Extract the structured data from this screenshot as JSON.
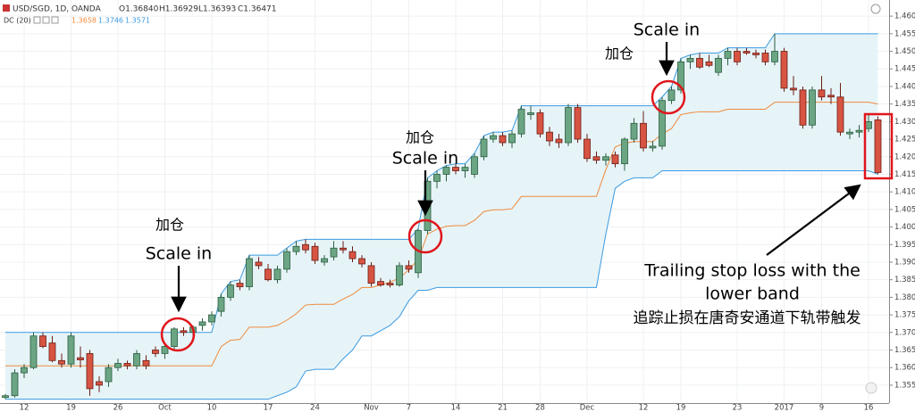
{
  "chart_data": {
    "type": "candlestick",
    "title": "USD/SGD, 1D, OANDA",
    "readout": [
      "O1.36840",
      "H1.36929",
      "L1.36393",
      "C1.36471"
    ],
    "indicator": {
      "name": "DC (20)",
      "readout": [
        {
          "text": "1.3658",
          "color": "#f0883a"
        },
        {
          "text": "1.3746",
          "color": "#3b9ae1"
        },
        {
          "text": "1.3571",
          "color": "#3b9ae1"
        }
      ]
    },
    "up_color": "#6ba583",
    "down_color": "#d75442",
    "categories": [
      null,
      null,
      "12",
      null,
      null,
      null,
      null,
      "19",
      null,
      null,
      null,
      null,
      "26",
      null,
      null,
      null,
      null,
      "Oct",
      null,
      null,
      null,
      null,
      "10",
      null,
      null,
      null,
      null,
      null,
      "17",
      null,
      null,
      null,
      null,
      "24",
      null,
      null,
      null,
      null,
      null,
      "Nov",
      null,
      null,
      null,
      "7",
      null,
      null,
      null,
      null,
      "14",
      null,
      null,
      null,
      null,
      "21",
      null,
      null,
      null,
      "28",
      null,
      null,
      null,
      null,
      "Dec",
      null,
      null,
      null,
      null,
      null,
      "12",
      null,
      null,
      null,
      "19",
      null,
      null,
      null,
      null,
      null,
      "23",
      null,
      null,
      null,
      null,
      "2017",
      null,
      null,
      null,
      "9",
      null,
      null,
      null,
      null,
      "16",
      null
    ],
    "open": [
      1.3515,
      1.352,
      1.3585,
      1.36,
      1.369,
      1.367,
      1.362,
      1.361,
      1.3628,
      1.364,
      1.356,
      1.356,
      1.36,
      1.3612,
      1.3605,
      1.362,
      1.365,
      1.364,
      1.366,
      1.3705,
      1.37,
      1.372,
      1.373,
      1.376,
      1.38,
      1.384,
      1.383,
      1.39,
      1.388,
      1.385,
      1.388,
      1.393,
      1.395,
      1.3945,
      1.39,
      1.3915,
      1.394,
      1.393,
      1.391,
      1.389,
      1.3845,
      1.384,
      1.3835,
      1.389,
      1.387,
      1.399,
      1.413,
      1.415,
      1.417,
      1.416,
      1.415,
      1.42,
      1.425,
      1.426,
      1.424,
      1.4265,
      1.432,
      1.4325,
      1.427,
      1.425,
      1.424,
      1.434,
      1.425,
      1.42,
      1.419,
      1.4205,
      1.418,
      1.425,
      1.4295,
      1.4225,
      1.423,
      1.436,
      1.439,
      1.447,
      1.448,
      1.447,
      1.444,
      1.448,
      1.45,
      1.45,
      1.4495,
      1.4495,
      1.447,
      1.45,
      1.4395,
      1.439,
      1.429,
      1.439,
      1.4375,
      1.437,
      1.4265,
      1.427,
      1.428,
      1.4305
    ],
    "high": [
      1.3525,
      1.3595,
      1.361,
      1.37,
      1.37,
      1.369,
      1.364,
      1.37,
      1.366,
      1.365,
      1.3575,
      1.361,
      1.3625,
      1.362,
      1.365,
      1.3635,
      1.366,
      1.3668,
      1.3715,
      1.3715,
      1.372,
      1.374,
      1.376,
      1.381,
      1.3845,
      1.385,
      1.392,
      1.3915,
      1.3895,
      1.389,
      1.394,
      1.396,
      1.3965,
      1.3955,
      1.392,
      1.396,
      1.396,
      1.3945,
      1.392,
      1.39,
      1.3855,
      1.385,
      1.39,
      1.3905,
      1.3995,
      1.414,
      1.416,
      1.4175,
      1.418,
      1.418,
      1.421,
      1.426,
      1.427,
      1.427,
      1.4275,
      1.4345,
      1.4345,
      1.4335,
      1.4285,
      1.4265,
      1.435,
      1.435,
      1.4265,
      1.4215,
      1.421,
      1.4215,
      1.4255,
      1.431,
      1.433,
      1.4245,
      1.437,
      1.44,
      1.448,
      1.449,
      1.4495,
      1.449,
      1.449,
      1.451,
      1.451,
      1.451,
      1.4505,
      1.4505,
      1.455,
      1.451,
      1.443,
      1.44,
      1.44,
      1.443,
      1.4395,
      1.441,
      1.428,
      1.429,
      1.432,
      1.4315
    ],
    "low": [
      1.351,
      1.3515,
      1.357,
      1.3595,
      1.3655,
      1.3615,
      1.36,
      1.36,
      1.36,
      1.352,
      1.353,
      1.3545,
      1.359,
      1.3595,
      1.3595,
      1.3595,
      1.363,
      1.3625,
      1.365,
      1.369,
      1.369,
      1.3705,
      1.372,
      1.3745,
      1.379,
      1.382,
      1.382,
      1.388,
      1.3845,
      1.384,
      1.387,
      1.392,
      1.3925,
      1.3895,
      1.389,
      1.3905,
      1.3925,
      1.39,
      1.3885,
      1.383,
      1.383,
      1.3828,
      1.383,
      1.387,
      1.3855,
      1.398,
      1.411,
      1.413,
      1.415,
      1.414,
      1.414,
      1.419,
      1.424,
      1.423,
      1.4225,
      1.4255,
      1.4305,
      1.4255,
      1.423,
      1.4225,
      1.423,
      1.424,
      1.4185,
      1.418,
      1.4175,
      1.417,
      1.416,
      1.424,
      1.4215,
      1.4215,
      1.422,
      1.435,
      1.438,
      1.445,
      1.445,
      1.4455,
      1.443,
      1.446,
      1.446,
      1.449,
      1.448,
      1.446,
      1.446,
      1.4385,
      1.4375,
      1.428,
      1.428,
      1.436,
      1.435,
      1.426,
      1.425,
      1.4255,
      1.427,
      1.415
    ],
    "close": [
      1.352,
      1.3585,
      1.36,
      1.369,
      1.366,
      1.362,
      1.361,
      1.369,
      1.3622,
      1.354,
      1.355,
      1.36,
      1.3612,
      1.3605,
      1.364,
      1.3605,
      1.364,
      1.366,
      1.371,
      1.37,
      1.3715,
      1.373,
      1.375,
      1.38,
      1.3835,
      1.383,
      1.391,
      1.389,
      1.385,
      1.388,
      1.393,
      1.3945,
      1.3935,
      1.3905,
      1.391,
      1.394,
      1.3935,
      1.391,
      1.3895,
      1.384,
      1.3835,
      1.3835,
      1.389,
      1.388,
      1.399,
      1.413,
      1.415,
      1.417,
      1.416,
      1.417,
      1.42,
      1.425,
      1.426,
      1.424,
      1.4265,
      1.4335,
      1.4325,
      1.4265,
      1.4245,
      1.424,
      1.434,
      1.425,
      1.4195,
      1.419,
      1.42,
      1.418,
      1.425,
      1.4295,
      1.4225,
      1.423,
      1.436,
      1.439,
      1.447,
      1.448,
      1.4455,
      1.446,
      1.448,
      1.45,
      1.447,
      1.4495,
      1.449,
      1.447,
      1.45,
      1.4395,
      1.439,
      1.429,
      1.439,
      1.437,
      1.437,
      1.427,
      1.427,
      1.4275,
      1.43,
      1.4155
    ],
    "bands": [
      {
        "color": "#3b9ae1",
        "values": [
          1.37,
          1.37,
          1.37,
          1.37,
          1.37,
          1.37,
          1.37,
          1.37,
          1.37,
          1.37,
          1.37,
          1.37,
          1.37,
          1.37,
          1.37,
          1.37,
          1.37,
          1.37,
          1.37,
          1.37,
          1.37,
          1.37,
          1.37,
          1.381,
          1.3845,
          1.385,
          1.392,
          1.392,
          1.392,
          1.392,
          1.394,
          1.396,
          1.3965,
          1.3965,
          1.3965,
          1.3965,
          1.3965,
          1.3965,
          1.3965,
          1.3965,
          1.3965,
          1.3965,
          1.3965,
          1.3965,
          1.3995,
          1.414,
          1.416,
          1.4175,
          1.418,
          1.418,
          1.421,
          1.426,
          1.427,
          1.427,
          1.4275,
          1.4345,
          1.4345,
          1.4345,
          1.4345,
          1.4345,
          1.4345,
          1.4345,
          1.4345,
          1.4345,
          1.4345,
          1.4345,
          1.4345,
          1.4345,
          1.4345,
          1.4345,
          1.437,
          1.44,
          1.448,
          1.449,
          1.4495,
          1.4495,
          1.4495,
          1.451,
          1.451,
          1.451,
          1.451,
          1.451,
          1.455,
          1.455,
          1.455,
          1.455,
          1.455,
          1.455,
          1.455,
          1.455,
          1.455,
          1.455,
          1.455,
          1.455
        ]
      },
      {
        "color": "#3b9ae1",
        "values": [
          1.351,
          1.351,
          1.351,
          1.351,
          1.351,
          1.351,
          1.351,
          1.351,
          1.351,
          1.351,
          1.351,
          1.351,
          1.351,
          1.351,
          1.351,
          1.351,
          1.351,
          1.351,
          1.351,
          1.351,
          1.351,
          1.351,
          1.351,
          1.351,
          1.351,
          1.351,
          1.351,
          1.351,
          1.351,
          1.352,
          1.353,
          1.3545,
          1.359,
          1.3595,
          1.3595,
          1.3595,
          1.3625,
          1.365,
          1.369,
          1.369,
          1.3705,
          1.372,
          1.3745,
          1.379,
          1.382,
          1.382,
          1.3828,
          1.3828,
          1.3828,
          1.3828,
          1.3828,
          1.3828,
          1.3828,
          1.3828,
          1.3828,
          1.3828,
          1.3828,
          1.3828,
          1.3828,
          1.3828,
          1.3828,
          1.3828,
          1.3828,
          1.3828,
          1.398,
          1.411,
          1.413,
          1.414,
          1.414,
          1.414,
          1.416,
          1.416,
          1.416,
          1.416,
          1.416,
          1.416,
          1.416,
          1.416,
          1.416,
          1.416,
          1.416,
          1.416,
          1.416,
          1.416,
          1.416,
          1.416,
          1.416,
          1.416,
          1.416,
          1.416,
          1.416,
          1.416,
          1.416,
          1.415
        ]
      },
      {
        "color": "#f0883a",
        "values": [
          1.3605,
          1.3605,
          1.3605,
          1.3605,
          1.3605,
          1.3605,
          1.3605,
          1.3605,
          1.3605,
          1.3605,
          1.3605,
          1.3605,
          1.3605,
          1.3605,
          1.3605,
          1.3605,
          1.3605,
          1.3605,
          1.3605,
          1.3605,
          1.3605,
          1.3605,
          1.3605,
          1.366,
          1.3678,
          1.368,
          1.3715,
          1.3715,
          1.3715,
          1.372,
          1.3735,
          1.3753,
          1.3778,
          1.378,
          1.378,
          1.378,
          1.3795,
          1.3808,
          1.3828,
          1.3828,
          1.3835,
          1.3843,
          1.3855,
          1.3878,
          1.3908,
          1.398,
          1.3994,
          1.4002,
          1.4004,
          1.4004,
          1.4019,
          1.4044,
          1.4049,
          1.4049,
          1.4052,
          1.4087,
          1.4087,
          1.4087,
          1.4087,
          1.4087,
          1.4087,
          1.4087,
          1.4087,
          1.4087,
          1.4163,
          1.4228,
          1.4238,
          1.4243,
          1.4243,
          1.4243,
          1.4265,
          1.428,
          1.432,
          1.4325,
          1.4328,
          1.4328,
          1.4328,
          1.4335,
          1.4335,
          1.4335,
          1.4335,
          1.4335,
          1.4355,
          1.4355,
          1.4355,
          1.4355,
          1.4355,
          1.4355,
          1.4355,
          1.4355,
          1.4355,
          1.4355,
          1.4355,
          1.435
        ]
      }
    ],
    "channel_fill": "#e6f4f8",
    "ylim": [
      1.3499,
      1.4646
    ],
    "yticks": [
      {
        "value": 1.355,
        "label": "1.35500"
      },
      {
        "value": 1.36,
        "label": "1.36000"
      },
      {
        "value": 1.365,
        "label": "1.36500"
      },
      {
        "value": 1.37,
        "label": "1.37000"
      },
      {
        "value": 1.375,
        "label": "1.37500"
      },
      {
        "value": 1.38,
        "label": "1.38000"
      },
      {
        "value": 1.385,
        "label": "1.38500"
      },
      {
        "value": 1.39,
        "label": "1.39000"
      },
      {
        "value": 1.395,
        "label": "1.39500"
      },
      {
        "value": 1.4,
        "label": "1.40000"
      },
      {
        "value": 1.405,
        "label": "1.40500"
      },
      {
        "value": 1.41,
        "label": "1.41000"
      },
      {
        "value": 1.415,
        "label": "1.41500"
      },
      {
        "value": 1.42,
        "label": "1.42000"
      },
      {
        "value": 1.425,
        "label": "1.42500"
      },
      {
        "value": 1.43,
        "label": "1.43000"
      },
      {
        "value": 1.435,
        "label": "1.43500"
      },
      {
        "value": 1.44,
        "label": "1.44000"
      },
      {
        "value": 1.445,
        "label": "1.44500"
      },
      {
        "value": 1.45,
        "label": "1.45000"
      },
      {
        "value": 1.455,
        "label": "1.45500"
      },
      {
        "value": 1.46,
        "label": "1.46000"
      }
    ],
    "grid": true,
    "annotations": [
      "加仓",
      "Scale in",
      "加仓",
      "Scale in",
      "Scale in",
      "加仓",
      "Trailing stop loss with the",
      "lower band",
      "追踪止损在唐奇安通道下轨带触发"
    ]
  }
}
